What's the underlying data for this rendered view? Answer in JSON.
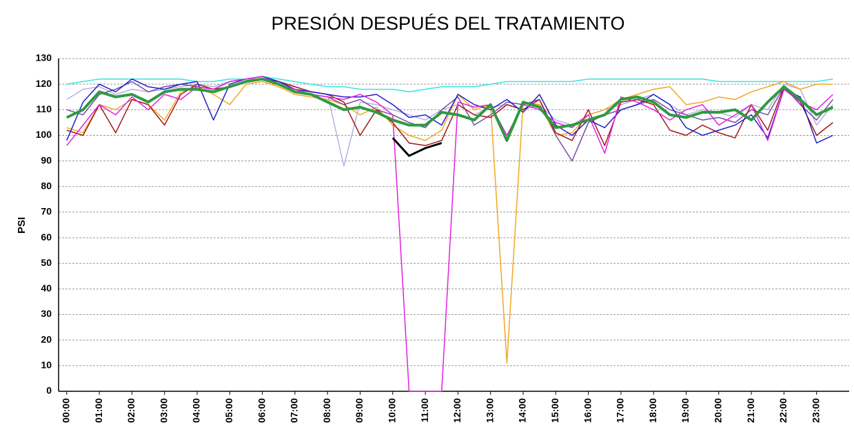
{
  "chart_data": {
    "type": "line",
    "title": "PRESIÓN DESPUÉS DEL TRATAMIENTO",
    "y_label": "PSI",
    "x": [
      0,
      0.5,
      1,
      1.5,
      2,
      2.5,
      3,
      3.5,
      4,
      4.5,
      5,
      5.5,
      6,
      6.5,
      7,
      7.5,
      8,
      8.5,
      9,
      9.5,
      10,
      10.5,
      11,
      11.5,
      12,
      12.5,
      13,
      13.5,
      14,
      14.5,
      15,
      15.5,
      16,
      16.5,
      17,
      17.5,
      18,
      18.5,
      19,
      19.5,
      20,
      20.5,
      21,
      21.5,
      22,
      22.5,
      23,
      23.5
    ],
    "xlim": [
      -0.25,
      24
    ],
    "xticks": [
      {
        "value": 0,
        "label": "00:00"
      },
      {
        "value": 1,
        "label": "01:00"
      },
      {
        "value": 2,
        "label": "02:00"
      },
      {
        "value": 3,
        "label": "03:00"
      },
      {
        "value": 4,
        "label": "04:00"
      },
      {
        "value": 5,
        "label": "05:00"
      },
      {
        "value": 6,
        "label": "06:00"
      },
      {
        "value": 7,
        "label": "07:00"
      },
      {
        "value": 8,
        "label": "08:00"
      },
      {
        "value": 9,
        "label": "09:00"
      },
      {
        "value": 10,
        "label": "10:00"
      },
      {
        "value": 11,
        "label": "11:00"
      },
      {
        "value": 12,
        "label": "12:00"
      },
      {
        "value": 13,
        "label": "13:00"
      },
      {
        "value": 14,
        "label": "14:00"
      },
      {
        "value": 15,
        "label": "15:00"
      },
      {
        "value": 16,
        "label": "16:00"
      },
      {
        "value": 17,
        "label": "17:00"
      },
      {
        "value": 18,
        "label": "18:00"
      },
      {
        "value": 19,
        "label": "19:00"
      },
      {
        "value": 20,
        "label": "20:00"
      },
      {
        "value": 21,
        "label": "21:00"
      },
      {
        "value": 22,
        "label": "22:00"
      },
      {
        "value": 23,
        "label": "23:00"
      }
    ],
    "ylim": [
      0,
      130
    ],
    "yticks": [
      0,
      10,
      20,
      30,
      40,
      50,
      60,
      70,
      80,
      90,
      100,
      110,
      120,
      130
    ],
    "grid": true,
    "series": [
      {
        "color": "#33e5e5",
        "width": 1.5,
        "values": [
          120,
          121,
          122,
          122,
          122,
          122,
          122,
          122,
          121,
          121,
          122,
          122,
          123,
          122,
          121,
          120,
          119,
          119,
          118,
          118,
          118,
          117,
          118,
          119,
          119,
          119,
          120,
          121,
          121,
          121,
          121,
          121,
          122,
          122,
          122,
          122,
          122,
          122,
          122,
          122,
          121,
          121,
          121,
          121,
          121,
          121,
          121,
          122
        ]
      },
      {
        "color": "#b8b0e0",
        "width": 1.5,
        "values": [
          114,
          118,
          119,
          116,
          118,
          117,
          118,
          119,
          120,
          119,
          121,
          122,
          122,
          121,
          119,
          117,
          116,
          88,
          113,
          112,
          110,
          108,
          106,
          110,
          112,
          108,
          111,
          112,
          110,
          112,
          106,
          104,
          108,
          110,
          112,
          114,
          116,
          112,
          108,
          110,
          109,
          107,
          112,
          110,
          120,
          118,
          104,
          112
        ]
      },
      {
        "color": "#f0a820",
        "width": 1.5,
        "values": [
          103,
          101,
          112,
          110,
          114,
          112,
          106,
          117,
          119,
          116,
          112,
          120,
          121,
          119,
          116,
          115,
          114,
          112,
          108,
          111,
          104,
          100,
          98,
          102,
          116,
          110,
          112,
          11,
          113,
          112,
          100,
          101,
          108,
          110,
          114,
          116,
          118,
          119,
          112,
          113,
          115,
          114,
          117,
          119,
          121,
          118,
          120,
          120
        ]
      },
      {
        "color": "#7a4aa8",
        "width": 1.5,
        "values": [
          110,
          108,
          116,
          118,
          121,
          117,
          119,
          120,
          119,
          118,
          121,
          122,
          123,
          121,
          118,
          116,
          115,
          112,
          114,
          110,
          108,
          105,
          103,
          110,
          115,
          104,
          108,
          113,
          112,
          114,
          100,
          90,
          105,
          108,
          110,
          112,
          114,
          110,
          108,
          106,
          107,
          105,
          110,
          108,
          119,
          112,
          106,
          114
        ]
      },
      {
        "color": "#a01818",
        "width": 1.5,
        "values": [
          102,
          100,
          112,
          101,
          114,
          112,
          104,
          116,
          120,
          118,
          119,
          121,
          122,
          121,
          119,
          117,
          116,
          113,
          100,
          110,
          105,
          97,
          96,
          98,
          112,
          108,
          107,
          112,
          110,
          114,
          101,
          98,
          110,
          96,
          113,
          114,
          112,
          102,
          100,
          104,
          101,
          99,
          112,
          102,
          119,
          113,
          100,
          105
        ]
      },
      {
        "color": "#2020c8",
        "width": 1.5,
        "values": [
          98,
          113,
          120,
          117,
          122,
          119,
          118,
          120,
          121,
          106,
          120,
          122,
          123,
          121,
          118,
          117,
          116,
          115,
          115,
          116,
          112,
          107,
          108,
          104,
          116,
          112,
          110,
          114,
          109,
          116,
          104,
          100,
          106,
          103,
          110,
          112,
          116,
          112,
          103,
          100,
          102,
          104,
          108,
          99,
          118,
          115,
          97,
          100
        ]
      },
      {
        "color": "#e020e0",
        "width": 1.5,
        "values": [
          96,
          104,
          112,
          108,
          115,
          110,
          116,
          114,
          119,
          118,
          121,
          122,
          123,
          120,
          118,
          116,
          115,
          114,
          116,
          113,
          108,
          0,
          0,
          0,
          113,
          111,
          112,
          100,
          112,
          110,
          105,
          103,
          108,
          93,
          115,
          113,
          110,
          106,
          110,
          112,
          104,
          108,
          112,
          98,
          118,
          113,
          110,
          116
        ]
      },
      {
        "color": "#000000",
        "width": 3,
        "values": [
          null,
          null,
          null,
          null,
          null,
          null,
          null,
          null,
          null,
          null,
          null,
          null,
          null,
          null,
          null,
          null,
          null,
          null,
          null,
          null,
          99,
          92,
          95,
          97,
          null,
          null,
          null,
          null,
          null,
          null,
          null,
          null,
          null,
          null,
          null,
          null,
          null,
          null,
          null,
          null,
          null,
          null,
          null,
          null,
          null,
          null,
          null,
          null
        ]
      },
      {
        "color": "#2e9a40",
        "width": 4,
        "values": [
          107,
          110,
          117,
          115,
          116,
          113,
          117,
          118,
          118,
          117,
          119,
          121,
          122,
          120,
          117,
          116,
          113,
          110,
          111,
          109,
          106,
          104,
          104,
          109,
          108,
          106,
          112,
          98,
          113,
          111,
          103,
          104,
          106,
          108,
          114,
          115,
          113,
          108,
          107,
          109,
          109,
          110,
          106,
          113,
          119,
          114,
          108,
          111
        ]
      }
    ]
  }
}
